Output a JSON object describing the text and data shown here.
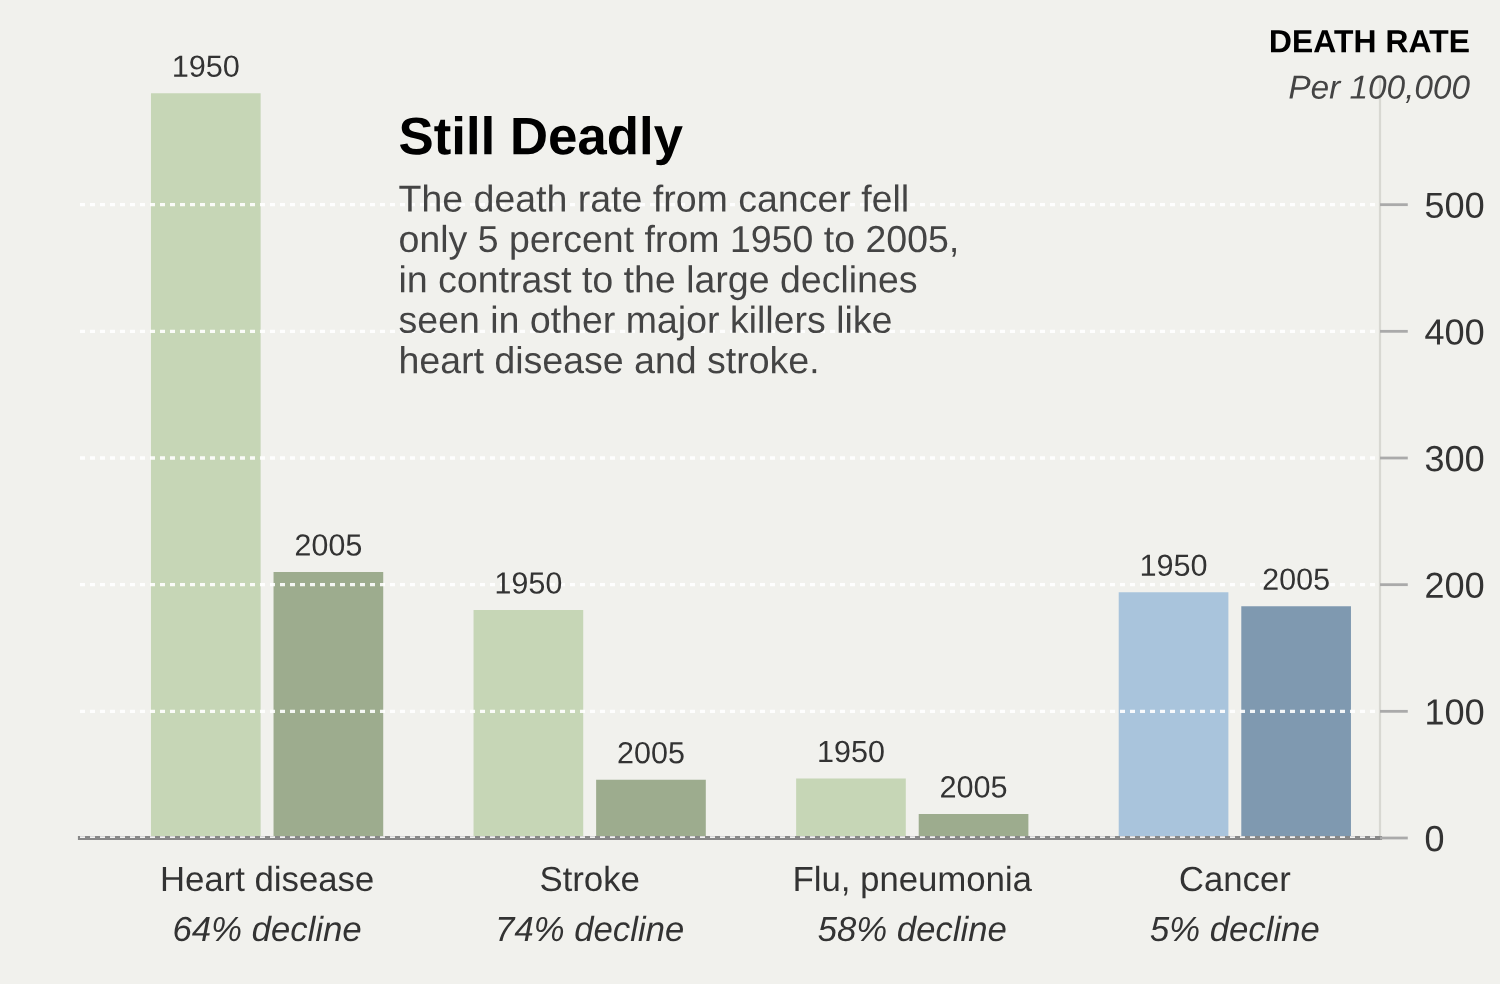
{
  "chart_data": {
    "type": "bar",
    "title": "Still Deadly",
    "subtitle": "The death rate from cancer fell\nonly 5 percent from 1950 to 2005,\nin contrast to the large declines\nseen in other major killers like\nheart disease and stroke.",
    "ylabel": "DEATH RATE",
    "categories": [
      "Heart disease",
      "Stroke",
      "Flu, pneumonia",
      "Cancer"
    ],
    "series": [
      {
        "name": "1950",
        "colors": [
          "#c6d6b6",
          "#c6d6b6",
          "#c6d6b6",
          "#a9c4dc"
        ],
        "values": [
          588,
          180,
          47,
          194
        ]
      },
      {
        "name": "2005",
        "colors": [
          "#9dac8e",
          "#9dac8e",
          "#9dac8e",
          "#7f99b0"
        ],
        "values": [
          210,
          46,
          19,
          183
        ]
      }
    ],
    "ylim": [
      0,
      600
    ],
    "yticks": [
      0,
      100,
      200,
      300,
      400,
      500
    ],
    "grid": "y",
    "legend": false,
    "annotations": [
      "Per 100,000",
      "64% decline",
      "74% decline",
      "58% decline",
      "5% decline"
    ]
  }
}
